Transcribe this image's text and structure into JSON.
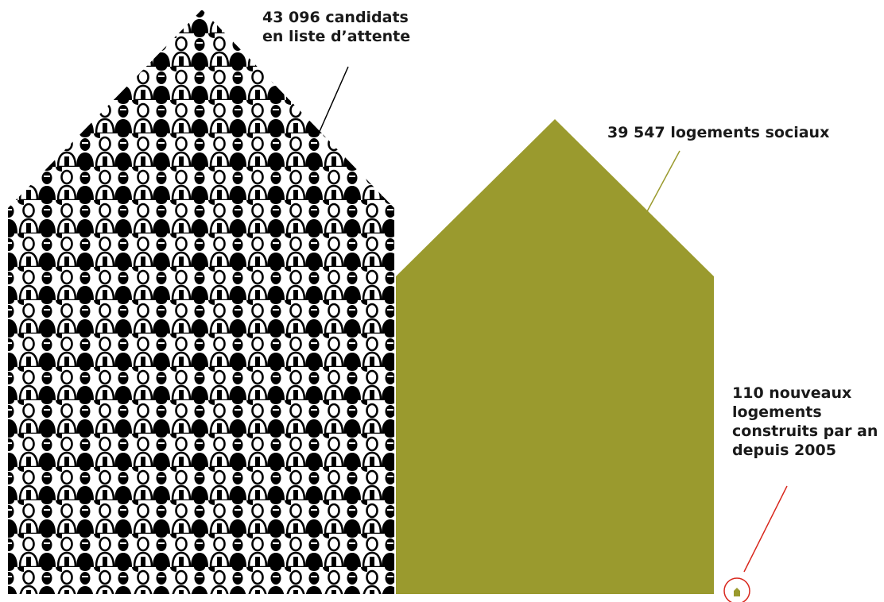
{
  "labels": {
    "waiting_list": {
      "line1": "43 096 candidats",
      "line2": "en liste d’attente"
    },
    "social_housing": "39 547 logements sociaux",
    "new_housing": {
      "line1": "110 nouveaux",
      "line2": "logements",
      "line3": "construits par an",
      "line4": "depuis 2005"
    }
  },
  "values": {
    "waiting_candidates": 43096,
    "social_housing_units": 39547,
    "new_units_per_year": 110
  },
  "colors": {
    "social_house_fill": "#9a9a2e",
    "people_ink": "#000000",
    "people_paper": "#ffffff",
    "leader_waiting": "#000000",
    "leader_social": "#9a9a2e",
    "leader_new": "#d9281e",
    "small_house": "#9a9a2e"
  },
  "icons": {
    "people_pattern": "person-silhouette-icon",
    "small_house": "house-icon"
  }
}
